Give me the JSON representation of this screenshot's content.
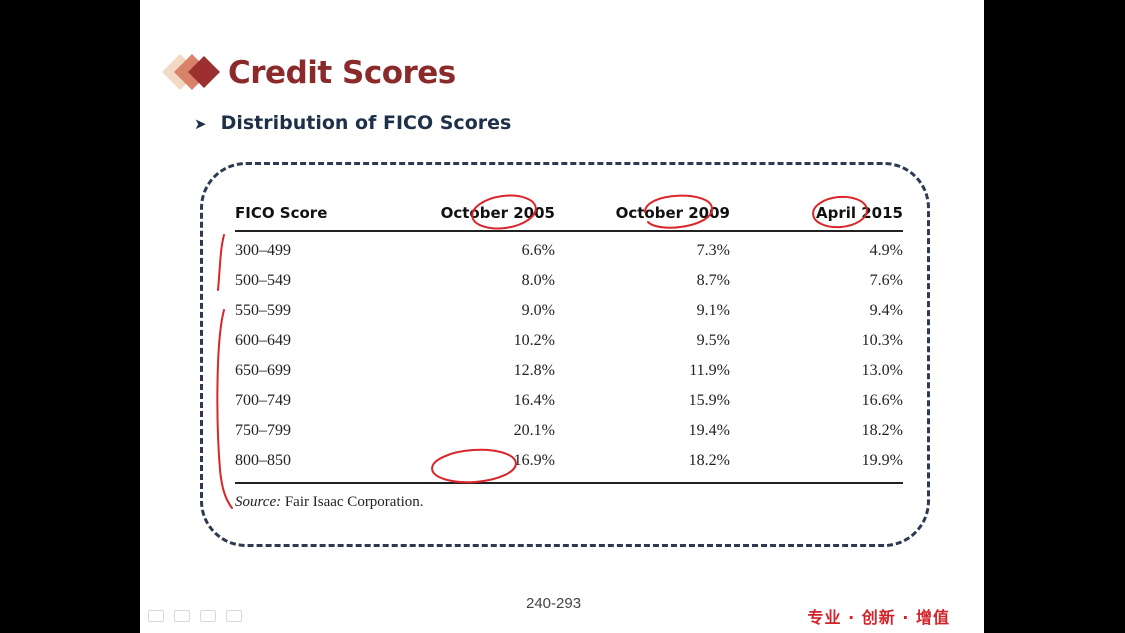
{
  "slide": {
    "title": "Credit Scores",
    "bullet": "Distribution of FICO Scores",
    "page_number": "240-293",
    "slogan": "专业 · 创新 · 增值"
  },
  "colors": {
    "title": "#8b2a2a",
    "bullet": "#1e3048",
    "annotation": "#d8262a",
    "frame": "#2e3a52",
    "slogan": "#d2232a"
  },
  "icons": {
    "bullet_marker": "arrowhead-bullet-icon",
    "logo": "diamond-logo-icon",
    "nav": [
      "nav-prev-icon",
      "nav-pen-icon",
      "nav-menu-icon",
      "nav-next-icon"
    ]
  },
  "table": {
    "headers": [
      "FICO Score",
      "October 2005",
      "October 2009",
      "April 2015"
    ],
    "rows": [
      [
        "300–499",
        "6.6%",
        "7.3%",
        "4.9%"
      ],
      [
        "500–549",
        "8.0%",
        "8.7%",
        "7.6%"
      ],
      [
        "550–599",
        "9.0%",
        "9.1%",
        "9.4%"
      ],
      [
        "600–649",
        "10.2%",
        "9.5%",
        "10.3%"
      ],
      [
        "650–699",
        "12.8%",
        "11.9%",
        "13.0%"
      ],
      [
        "700–749",
        "16.4%",
        "15.9%",
        "16.6%"
      ],
      [
        "750–799",
        "20.1%",
        "19.4%",
        "18.2%"
      ],
      [
        "800–850",
        "16.9%",
        "18.2%",
        "19.9%"
      ]
    ],
    "source_label": "Source:",
    "source_text": " Fair Isaac Corporation."
  }
}
